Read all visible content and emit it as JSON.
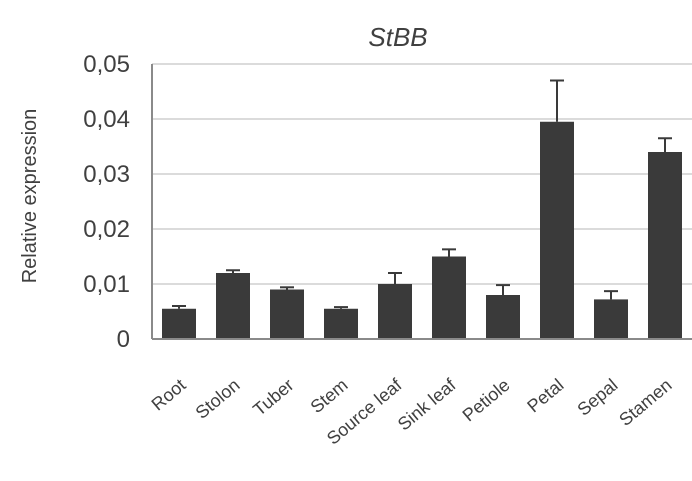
{
  "chart_data": {
    "type": "bar",
    "title": "StBB",
    "xlabel": "",
    "ylabel": "Relative expression",
    "ylim": [
      0,
      0.05
    ],
    "yticks": [
      0,
      0.01,
      0.02,
      0.03,
      0.04,
      0.05
    ],
    "ytick_labels": [
      "0",
      "0,01",
      "0,02",
      "0,03",
      "0,04",
      "0,05"
    ],
    "categories": [
      "Root",
      "Stolon",
      "Tuber",
      "Stem",
      "Source leaf",
      "Sink leaf",
      "Petiole",
      "Petal",
      "Sepal",
      "Stamen"
    ],
    "values": [
      0.0055,
      0.012,
      0.009,
      0.0055,
      0.01,
      0.015,
      0.008,
      0.0395,
      0.0072,
      0.034
    ],
    "errors": [
      0.0005,
      0.0005,
      0.0004,
      0.0003,
      0.002,
      0.0013,
      0.0018,
      0.0075,
      0.0015,
      0.0025
    ],
    "grid": true,
    "bar_color": "#3a3a3a",
    "grid_color": "#cfcfcf",
    "axis_color": "#8a8a8a"
  }
}
